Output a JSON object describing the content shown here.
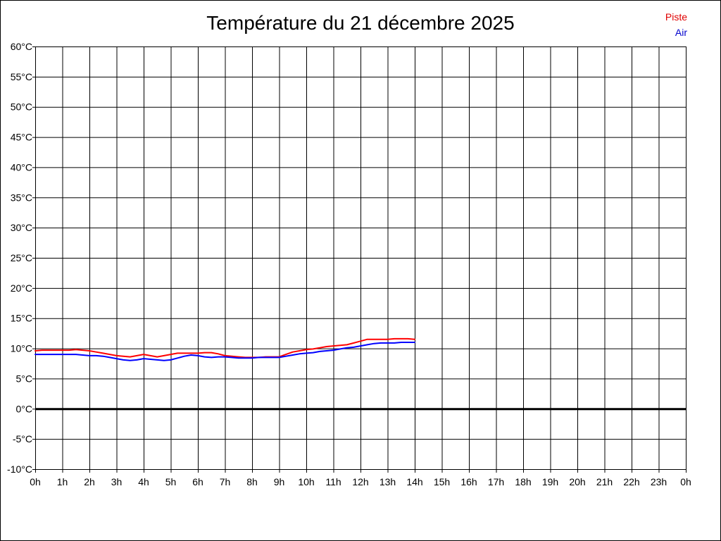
{
  "chart_data": {
    "type": "line",
    "title": "Température du 21 décembre 2025",
    "xlabel": "",
    "ylabel": "",
    "x_tick_labels": [
      "0h",
      "1h",
      "2h",
      "3h",
      "4h",
      "5h",
      "6h",
      "7h",
      "8h",
      "9h",
      "10h",
      "11h",
      "12h",
      "13h",
      "14h",
      "15h",
      "16h",
      "17h",
      "18h",
      "19h",
      "20h",
      "21h",
      "22h",
      "23h",
      "0h"
    ],
    "y_tick_labels": [
      "60°C",
      "55°C",
      "50°C",
      "45°C",
      "40°C",
      "35°C",
      "30°C",
      "25°C",
      "20°C",
      "15°C",
      "10°C",
      "5°C",
      "0°C",
      "-5°C",
      "-10°C"
    ],
    "xlim": [
      0,
      24
    ],
    "ylim": [
      -10,
      60
    ],
    "grid": true,
    "zero_line": true,
    "legend_position": "top-right",
    "series": [
      {
        "name": "Piste",
        "color": "#ff0000",
        "x": [
          0,
          0.25,
          0.5,
          0.75,
          1,
          1.25,
          1.5,
          1.75,
          2,
          2.25,
          2.5,
          2.75,
          3,
          3.25,
          3.5,
          3.75,
          4,
          4.25,
          4.5,
          4.75,
          5,
          5.25,
          5.5,
          5.75,
          6,
          6.25,
          6.5,
          6.75,
          7,
          7.25,
          7.5,
          7.75,
          8,
          8.25,
          8.5,
          8.75,
          9,
          9.25,
          9.5,
          9.75,
          10,
          10.25,
          10.5,
          10.75,
          11,
          11.25,
          11.5,
          11.75,
          12,
          12.25,
          12.5,
          12.75,
          13,
          13.25,
          13.5,
          13.75,
          14
        ],
        "y": [
          9.6,
          9.7,
          9.7,
          9.7,
          9.7,
          9.7,
          9.8,
          9.7,
          9.6,
          9.4,
          9.2,
          9.0,
          8.8,
          8.7,
          8.6,
          8.8,
          9.0,
          8.8,
          8.6,
          8.8,
          9.0,
          9.2,
          9.2,
          9.2,
          9.2,
          9.3,
          9.3,
          9.1,
          8.8,
          8.7,
          8.6,
          8.5,
          8.5,
          8.5,
          8.6,
          8.6,
          8.6,
          9.0,
          9.4,
          9.6,
          9.8,
          9.9,
          10.1,
          10.3,
          10.4,
          10.5,
          10.6,
          10.9,
          11.2,
          11.5,
          11.5,
          11.5,
          11.5,
          11.6,
          11.6,
          11.6,
          11.5
        ]
      },
      {
        "name": "Air",
        "color": "#0000ff",
        "x": [
          0,
          0.25,
          0.5,
          0.75,
          1,
          1.25,
          1.5,
          1.75,
          2,
          2.25,
          2.5,
          2.75,
          3,
          3.25,
          3.5,
          3.75,
          4,
          4.25,
          4.5,
          4.75,
          5,
          5.25,
          5.5,
          5.75,
          6,
          6.25,
          6.5,
          6.75,
          7,
          7.25,
          7.5,
          7.75,
          8,
          8.25,
          8.5,
          8.75,
          9,
          9.25,
          9.5,
          9.75,
          10,
          10.25,
          10.5,
          10.75,
          11,
          11.25,
          11.5,
          11.75,
          12,
          12.25,
          12.5,
          12.75,
          13,
          13.25,
          13.5,
          13.75,
          14
        ],
        "y": [
          9.0,
          9.0,
          9.0,
          9.0,
          9.0,
          9.0,
          9.0,
          8.9,
          8.8,
          8.8,
          8.7,
          8.5,
          8.3,
          8.1,
          8.0,
          8.1,
          8.3,
          8.2,
          8.1,
          8.0,
          8.1,
          8.4,
          8.7,
          8.9,
          8.8,
          8.6,
          8.5,
          8.6,
          8.6,
          8.5,
          8.4,
          8.4,
          8.4,
          8.5,
          8.5,
          8.5,
          8.5,
          8.7,
          8.9,
          9.1,
          9.2,
          9.3,
          9.5,
          9.6,
          9.7,
          9.9,
          10.1,
          10.2,
          10.4,
          10.6,
          10.8,
          10.9,
          10.9,
          10.9,
          11.0,
          11.0,
          11.0
        ]
      }
    ]
  }
}
